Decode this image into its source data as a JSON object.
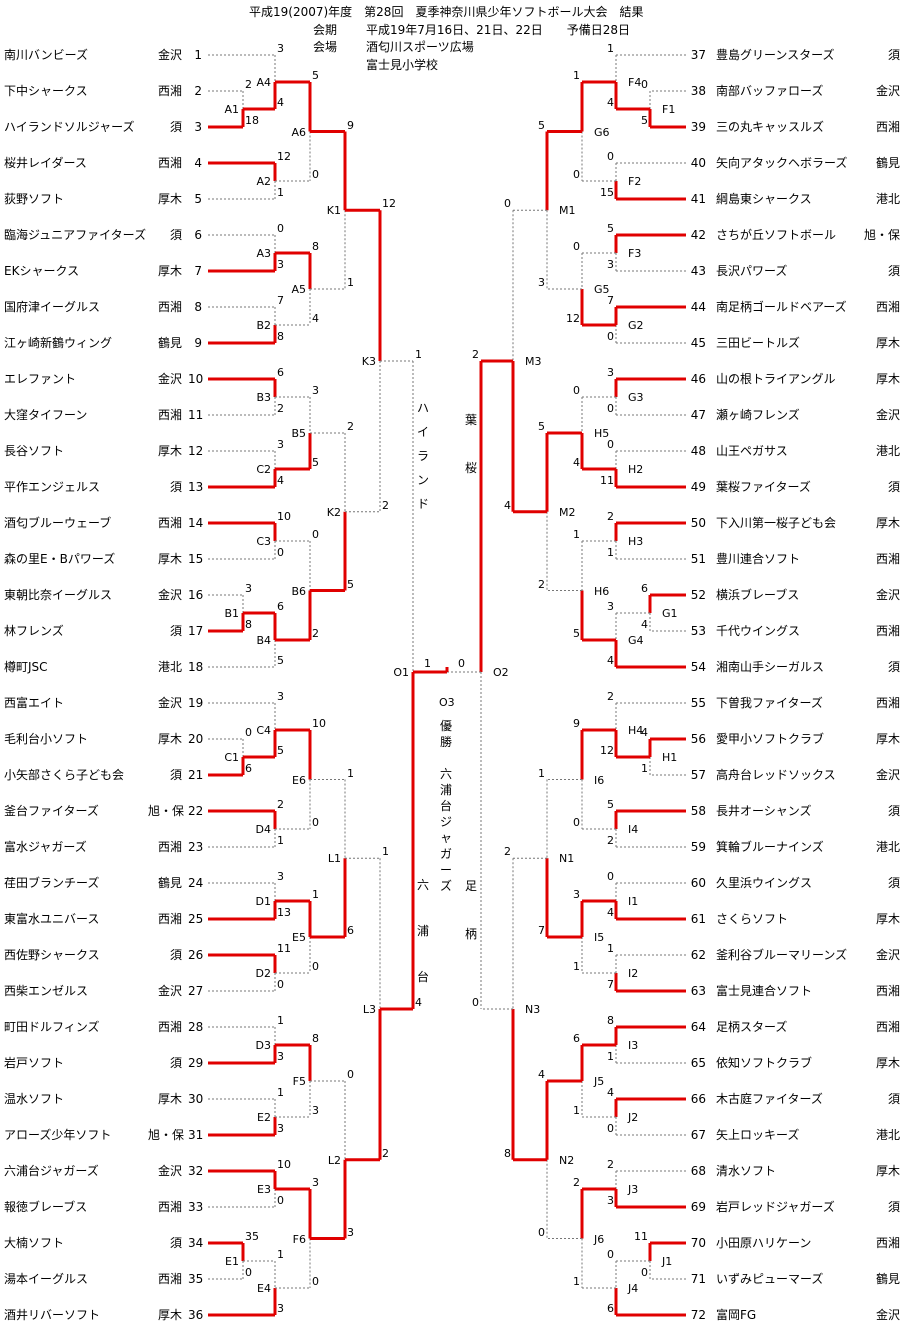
{
  "header": {
    "title": "平成19(2007)年度　第28回　夏季神奈川県少年ソフトボール大会　結果",
    "period_label": "会期",
    "period": "平成19年7月16日、21日、22日　　予備日28日",
    "venue_label": "会場",
    "venue1": "酒匂川スポーツ広場",
    "venue2": "富士見小学校"
  },
  "colors": {
    "win": "#e00000",
    "lose": "#777777"
  },
  "teams": [
    {
      "num": "1",
      "name": "南川バンビーズ",
      "district": "金沢"
    },
    {
      "num": "2",
      "name": "下中シャークス",
      "district": "西湘"
    },
    {
      "num": "3",
      "name": "ハイランドソルジャーズ",
      "district": "須"
    },
    {
      "num": "4",
      "name": "桜井レイダース",
      "district": "西湘"
    },
    {
      "num": "5",
      "name": "荻野ソフト",
      "district": "厚木"
    },
    {
      "num": "6",
      "name": "臨海ジュニアファイターズ",
      "district": "須"
    },
    {
      "num": "7",
      "name": "EKシャークス",
      "district": "厚木"
    },
    {
      "num": "8",
      "name": "国府津イーグルス",
      "district": "西湘"
    },
    {
      "num": "9",
      "name": "江ヶ崎新鶴ウィング",
      "district": "鶴見"
    },
    {
      "num": "10",
      "name": "エレファント",
      "district": "金沢"
    },
    {
      "num": "11",
      "name": "大窪タイフーン",
      "district": "西湘"
    },
    {
      "num": "12",
      "name": "長谷ソフト",
      "district": "厚木"
    },
    {
      "num": "13",
      "name": "平作エンジェルス",
      "district": "須"
    },
    {
      "num": "14",
      "name": "酒匂ブルーウェーブ",
      "district": "西湘"
    },
    {
      "num": "15",
      "name": "森の里E・Bパワーズ",
      "district": "厚木"
    },
    {
      "num": "16",
      "name": "東朝比奈イーグルス",
      "district": "金沢"
    },
    {
      "num": "17",
      "name": "林フレンズ",
      "district": "須"
    },
    {
      "num": "18",
      "name": "樽町JSC",
      "district": "港北"
    },
    {
      "num": "19",
      "name": "西富エイト",
      "district": "金沢"
    },
    {
      "num": "20",
      "name": "毛利台小ソフト",
      "district": "厚木"
    },
    {
      "num": "21",
      "name": "小矢部さくら子ども会",
      "district": "須"
    },
    {
      "num": "22",
      "name": "釜台ファイターズ",
      "district": "旭・保"
    },
    {
      "num": "23",
      "name": "富水ジャガーズ",
      "district": "西湘"
    },
    {
      "num": "24",
      "name": "荏田ブランチーズ",
      "district": "鶴見"
    },
    {
      "num": "25",
      "name": "東富水ユニバース",
      "district": "西湘"
    },
    {
      "num": "26",
      "name": "西佐野シャークス",
      "district": "須"
    },
    {
      "num": "27",
      "name": "西柴エンゼルス",
      "district": "金沢"
    },
    {
      "num": "28",
      "name": "町田ドルフィンズ",
      "district": "西湘"
    },
    {
      "num": "29",
      "name": "岩戸ソフト",
      "district": "須"
    },
    {
      "num": "30",
      "name": "温水ソフト",
      "district": "厚木"
    },
    {
      "num": "31",
      "name": "アローズ少年ソフト",
      "district": "旭・保"
    },
    {
      "num": "32",
      "name": "六浦台ジャガーズ",
      "district": "金沢"
    },
    {
      "num": "33",
      "name": "報徳ブレーブス",
      "district": "西湘"
    },
    {
      "num": "34",
      "name": "大楠ソフト",
      "district": "須"
    },
    {
      "num": "35",
      "name": "湯本イーグルス",
      "district": "西湘"
    },
    {
      "num": "36",
      "name": "酒井リバーソフト",
      "district": "厚木"
    },
    {
      "num": "37",
      "name": "豊島グリーンスターズ",
      "district": "須"
    },
    {
      "num": "38",
      "name": "南部バッファローズ",
      "district": "金沢"
    },
    {
      "num": "39",
      "name": "三の丸キャッスルズ",
      "district": "西湘"
    },
    {
      "num": "40",
      "name": "矢向アタックヘボラーズ",
      "district": "鶴見"
    },
    {
      "num": "41",
      "name": "綱島東シャークス",
      "district": "港北"
    },
    {
      "num": "42",
      "name": "さちが丘ソフトボール",
      "district": "旭・保"
    },
    {
      "num": "43",
      "name": "長沢パワーズ",
      "district": "須"
    },
    {
      "num": "44",
      "name": "南足柄ゴールドベアーズ",
      "district": "西湘"
    },
    {
      "num": "45",
      "name": "三田ビートルズ",
      "district": "厚木"
    },
    {
      "num": "46",
      "name": "山の根トライアングル",
      "district": "厚木"
    },
    {
      "num": "47",
      "name": "瀬ヶ崎フレンズ",
      "district": "金沢"
    },
    {
      "num": "48",
      "name": "山王ペガサス",
      "district": "港北"
    },
    {
      "num": "49",
      "name": "葉桜ファイターズ",
      "district": "須"
    },
    {
      "num": "50",
      "name": "下入川第一桜子ども会",
      "district": "厚木"
    },
    {
      "num": "51",
      "name": "豊川連合ソフト",
      "district": "西湘"
    },
    {
      "num": "52",
      "name": "横浜ブレーブス",
      "district": "金沢"
    },
    {
      "num": "53",
      "name": "千代ウイングス",
      "district": "西湘"
    },
    {
      "num": "54",
      "name": "湘南山手シーガルス",
      "district": "須"
    },
    {
      "num": "55",
      "name": "下曽我ファイターズ",
      "district": "西湘"
    },
    {
      "num": "56",
      "name": "愛甲小ソフトクラブ",
      "district": "厚木"
    },
    {
      "num": "57",
      "name": "高舟台レッドソックス",
      "district": "金沢"
    },
    {
      "num": "58",
      "name": "長井オーシャンズ",
      "district": "須"
    },
    {
      "num": "59",
      "name": "箕輪ブルーナインズ",
      "district": "港北"
    },
    {
      "num": "60",
      "name": "久里浜ウイングス",
      "district": "須"
    },
    {
      "num": "61",
      "name": "さくらソフト",
      "district": "厚木"
    },
    {
      "num": "62",
      "name": "釜利谷ブルーマリーンズ",
      "district": "金沢"
    },
    {
      "num": "63",
      "name": "富士見連合ソフト",
      "district": "西湘"
    },
    {
      "num": "64",
      "name": "足柄スターズ",
      "district": "西湘"
    },
    {
      "num": "65",
      "name": "依知ソフトクラブ",
      "district": "厚木"
    },
    {
      "num": "66",
      "name": "木古庭ファイターズ",
      "district": "須"
    },
    {
      "num": "67",
      "name": "矢上ロッキーズ",
      "district": "港北"
    },
    {
      "num": "68",
      "name": "清水ソフト",
      "district": "厚木"
    },
    {
      "num": "69",
      "name": "岩戸レッドジャガーズ",
      "district": "須"
    },
    {
      "num": "70",
      "name": "小田原ハリケーン",
      "district": "西湘"
    },
    {
      "num": "71",
      "name": "いずみピューマーズ",
      "district": "鶴見"
    },
    {
      "num": "72",
      "name": "富岡FG",
      "district": "金沢"
    }
  ],
  "final": {
    "left_code": "O1",
    "right_code": "O2",
    "code": "O3",
    "left_score": "1",
    "right_score": "0",
    "left_name": "六浦台",
    "right_name": "足柄",
    "semi_left_name": "ハイランド",
    "semi_right_name": "葉桜",
    "champion_label": "優勝",
    "champion_name": "六浦台ジャガーズ"
  },
  "matches": [
    {
      "code": "A1",
      "top": "2",
      "bottom": "18",
      "winner": "bottom"
    },
    {
      "code": "A2",
      "top": "12",
      "bottom": "1",
      "winner": "top"
    },
    {
      "code": "A3",
      "top": "0",
      "bottom": "3",
      "winner": "bottom"
    },
    {
      "code": "A4",
      "top": "3",
      "bottom": "4",
      "winner": "bottom"
    },
    {
      "code": "A5",
      "top": "8",
      "bottom": "4",
      "winner": "top"
    },
    {
      "code": "A6",
      "top": "5",
      "bottom": "0",
      "winner": "top"
    },
    {
      "code": "K1",
      "top": "9",
      "bottom": "1",
      "winner": "top"
    },
    {
      "code": "B1",
      "top": "3",
      "bottom": "8",
      "winner": "bottom"
    },
    {
      "code": "B2",
      "top": "7",
      "bottom": "8",
      "winner": "bottom"
    },
    {
      "code": "B3",
      "top": "6",
      "bottom": "2",
      "winner": "top"
    },
    {
      "code": "B4",
      "top": "6",
      "bottom": "5",
      "winner": "top"
    },
    {
      "code": "B5",
      "top": "3",
      "bottom": "5",
      "winner": "bottom"
    },
    {
      "code": "B6",
      "top": "0",
      "bottom": "2",
      "winner": "bottom"
    },
    {
      "code": "C1",
      "top": "0",
      "bottom": "6",
      "winner": "bottom"
    },
    {
      "code": "C2",
      "top": "3",
      "bottom": "4",
      "winner": "bottom"
    },
    {
      "code": "C3",
      "top": "10",
      "bottom": "0",
      "winner": "top"
    },
    {
      "code": "C4",
      "top": "3",
      "bottom": "5",
      "winner": "bottom"
    },
    {
      "code": "K2",
      "top": "2",
      "bottom": "5",
      "winner": "bottom"
    },
    {
      "code": "K3",
      "top": "12",
      "bottom": "2",
      "winner": "top"
    },
    {
      "code": "D1",
      "top": "3",
      "bottom": "13",
      "winner": "bottom"
    },
    {
      "code": "D2",
      "top": "11",
      "bottom": "0",
      "winner": "top"
    },
    {
      "code": "D3",
      "top": "1",
      "bottom": "3",
      "winner": "bottom"
    },
    {
      "code": "D4",
      "top": "2",
      "bottom": "1",
      "winner": "top"
    },
    {
      "code": "E1",
      "top": "35",
      "bottom": "0",
      "winner": "top"
    },
    {
      "code": "E2",
      "top": "1",
      "bottom": "3",
      "winner": "bottom"
    },
    {
      "code": "E3",
      "top": "10",
      "bottom": "0",
      "winner": "top"
    },
    {
      "code": "E4",
      "top": "1",
      "bottom": "3",
      "winner": "bottom"
    },
    {
      "code": "E5",
      "top": "1",
      "bottom": "0",
      "winner": "top"
    },
    {
      "code": "E6",
      "top": "10",
      "bottom": "0",
      "winner": "top"
    },
    {
      "code": "F5",
      "top": "8",
      "bottom": "3",
      "winner": "top"
    },
    {
      "code": "F6",
      "top": "3",
      "bottom": "0",
      "winner": "top"
    },
    {
      "code": "L1",
      "top": "1",
      "bottom": "6",
      "winner": "bottom"
    },
    {
      "code": "L2",
      "top": "0",
      "bottom": "3",
      "winner": "bottom"
    },
    {
      "code": "L3",
      "top": "1",
      "bottom": "2",
      "winner": "bottom"
    },
    {
      "code": "O1",
      "top": "1",
      "bottom": "4",
      "winner": "bottom"
    },
    {
      "code": "F1",
      "top": "0",
      "bottom": "5",
      "winner": "bottom"
    },
    {
      "code": "F2",
      "top": "0",
      "bottom": "15",
      "winner": "bottom"
    },
    {
      "code": "F3",
      "top": "5",
      "bottom": "3",
      "winner": "top"
    },
    {
      "code": "F4",
      "top": "1",
      "bottom": "4",
      "winner": "bottom"
    },
    {
      "code": "G1",
      "top": "6",
      "bottom": "4",
      "winner": "top"
    },
    {
      "code": "G2",
      "top": "7",
      "bottom": "0",
      "winner": "top"
    },
    {
      "code": "G3",
      "top": "3",
      "bottom": "0",
      "winner": "top"
    },
    {
      "code": "G4",
      "top": "3",
      "bottom": "4",
      "winner": "bottom"
    },
    {
      "code": "G5",
      "top": "0",
      "bottom": "12",
      "winner": "bottom"
    },
    {
      "code": "G6",
      "top": "1",
      "bottom": "0",
      "winner": "top"
    },
    {
      "code": "H1",
      "top": "4",
      "bottom": "1",
      "winner": "top"
    },
    {
      "code": "H2",
      "top": "0",
      "bottom": "11",
      "winner": "bottom"
    },
    {
      "code": "H3",
      "top": "2",
      "bottom": "1",
      "winner": "top"
    },
    {
      "code": "H4",
      "top": "2",
      "bottom": "12",
      "winner": "bottom"
    },
    {
      "code": "H5",
      "top": "0",
      "bottom": "4",
      "winner": "bottom"
    },
    {
      "code": "H6",
      "top": "1",
      "bottom": "5",
      "winner": "bottom"
    },
    {
      "code": "M1",
      "top": "5",
      "bottom": "3",
      "winner": "top"
    },
    {
      "code": "M2",
      "top": "5",
      "bottom": "2",
      "winner": "top"
    },
    {
      "code": "M3",
      "top": "0",
      "bottom": "4",
      "winner": "bottom"
    },
    {
      "code": "I1",
      "top": "0",
      "bottom": "4",
      "winner": "bottom"
    },
    {
      "code": "I2",
      "top": "1",
      "bottom": "7",
      "winner": "bottom"
    },
    {
      "code": "I3",
      "top": "8",
      "bottom": "1",
      "winner": "top"
    },
    {
      "code": "I4",
      "top": "5",
      "bottom": "2",
      "winner": "top"
    },
    {
      "code": "I5",
      "top": "3",
      "bottom": "1",
      "winner": "top"
    },
    {
      "code": "I6",
      "top": "9",
      "bottom": "0",
      "winner": "top"
    },
    {
      "code": "J1",
      "top": "11",
      "bottom": "0",
      "winner": "top"
    },
    {
      "code": "J2",
      "top": "4",
      "bottom": "0",
      "winner": "top"
    },
    {
      "code": "J3",
      "top": "2",
      "bottom": "3",
      "winner": "bottom"
    },
    {
      "code": "J4",
      "top": "0",
      "bottom": "6",
      "winner": "bottom"
    },
    {
      "code": "J5",
      "top": "6",
      "bottom": "1",
      "winner": "top"
    },
    {
      "code": "J6",
      "top": "2",
      "bottom": "1",
      "winner": "top"
    },
    {
      "code": "N1",
      "top": "1",
      "bottom": "7",
      "winner": "bottom"
    },
    {
      "code": "N2",
      "top": "4",
      "bottom": "0",
      "winner": "top"
    },
    {
      "code": "N3",
      "top": "2",
      "bottom": "8",
      "winner": "bottom"
    },
    {
      "code": "O2",
      "top": "2",
      "bottom": "0",
      "winner": "top"
    }
  ]
}
